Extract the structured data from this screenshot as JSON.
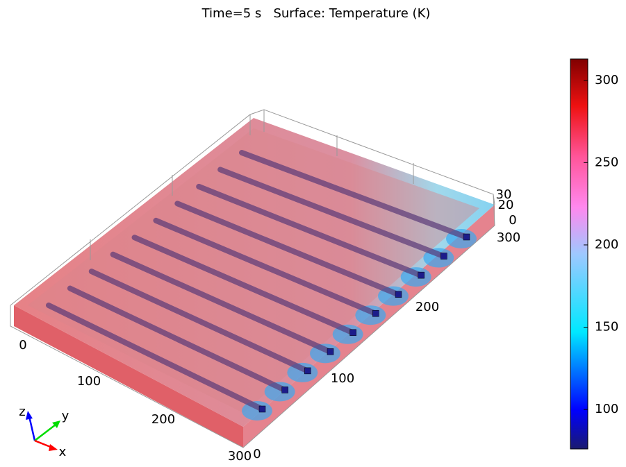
{
  "title": "Time=5 s   Surface: Temperature (K)",
  "colorbar": {
    "range": [
      76,
      313
    ],
    "ticks": [
      100,
      150,
      200,
      250,
      300
    ]
  },
  "axes": {
    "x_ticks": [
      "0",
      "100",
      "200",
      "300"
    ],
    "y_ticks": [
      "0",
      "100",
      "200",
      "300"
    ],
    "z_ticks": [
      "0",
      "20",
      "30"
    ]
  },
  "triad": {
    "x": "x",
    "y": "y",
    "z": "z"
  }
}
